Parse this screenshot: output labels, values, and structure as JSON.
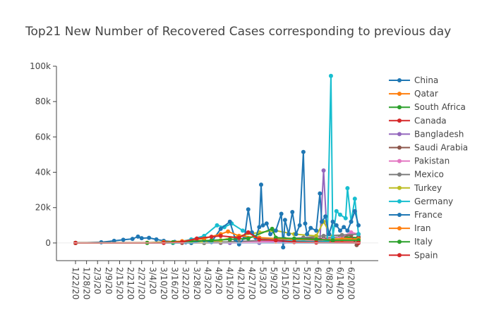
{
  "chart_data": {
    "type": "line",
    "title": "Top21 New Number of Recovered Cases corresponding to previous day",
    "xlabel": "",
    "ylabel": "",
    "x_ticks": [
      "1/22/20",
      "1/28/20",
      "2/3/20",
      "2/9/20",
      "2/15/20",
      "2/21/20",
      "2/27/20",
      "3/4/20",
      "3/10/20",
      "3/16/20",
      "3/22/20",
      "3/28/20",
      "4/3/20",
      "4/9/20",
      "4/15/20",
      "4/21/20",
      "4/27/20",
      "5/3/20",
      "5/9/20",
      "5/15/20",
      "5/21/20",
      "5/27/20",
      "6/2/20",
      "6/8/20",
      "6/14/20",
      "6/20/20"
    ],
    "x_start": "1/22/20",
    "x_end": "6/24/20",
    "y_ticks": [
      0,
      20000,
      40000,
      60000,
      80000,
      100000
    ],
    "y_tick_labels": [
      "0",
      "20k",
      "40k",
      "60k",
      "80k",
      "100k"
    ],
    "ylim": [
      -10000,
      100000
    ],
    "grid": false,
    "legend_position": "right",
    "series": [
      {
        "name": "China",
        "color": "#1f77b4",
        "points": [
          [
            "1/22/20",
            0
          ],
          [
            "2/5/20",
            400
          ],
          [
            "2/12/20",
            1200
          ],
          [
            "2/17/20",
            1800
          ],
          [
            "2/22/20",
            2300
          ],
          [
            "2/25/20",
            3600
          ],
          [
            "2/27/20",
            2700
          ],
          [
            "3/2/20",
            2900
          ],
          [
            "3/6/20",
            2000
          ],
          [
            "3/10/20",
            1200
          ],
          [
            "3/16/20",
            600
          ],
          [
            "3/22/20",
            400
          ],
          [
            "4/1/20",
            200
          ],
          [
            "4/10/20",
            100
          ],
          [
            "5/1/20",
            50
          ],
          [
            "6/24/20",
            0
          ]
        ]
      },
      {
        "name": "Qatar",
        "color": "#ff7f0e",
        "points": [
          [
            "1/22/20",
            0
          ],
          [
            "4/1/20",
            0
          ],
          [
            "4/20/20",
            300
          ],
          [
            "5/10/20",
            700
          ],
          [
            "5/25/20",
            1200
          ],
          [
            "6/5/20",
            2000
          ],
          [
            "6/14/20",
            2800
          ],
          [
            "6/24/20",
            2300
          ]
        ]
      },
      {
        "name": "South Africa",
        "color": "#2ca02c",
        "points": [
          [
            "1/22/20",
            0
          ],
          [
            "4/1/20",
            0
          ],
          [
            "4/20/20",
            300
          ],
          [
            "5/1/20",
            800
          ],
          [
            "5/10/20",
            1000
          ],
          [
            "5/25/20",
            1500
          ],
          [
            "6/5/20",
            2500
          ],
          [
            "6/14/20",
            3500
          ],
          [
            "6/24/20",
            3000
          ]
        ]
      },
      {
        "name": "Canada",
        "color": "#d62728",
        "points": [
          [
            "1/22/20",
            0
          ],
          [
            "3/15/20",
            0
          ],
          [
            "4/1/20",
            300
          ],
          [
            "4/15/20",
            600
          ],
          [
            "5/1/20",
            900
          ],
          [
            "5/15/20",
            1000
          ],
          [
            "6/1/20",
            700
          ],
          [
            "6/24/20",
            500
          ]
        ]
      },
      {
        "name": "Bangladesh",
        "color": "#9467bd",
        "points": [
          [
            "1/22/20",
            0
          ],
          [
            "4/15/20",
            0
          ],
          [
            "5/1/20",
            200
          ],
          [
            "5/15/20",
            600
          ],
          [
            "5/29/20",
            1000
          ],
          [
            "6/3/20",
            1200
          ],
          [
            "6/5/20",
            41000
          ],
          [
            "6/7/20",
            1500
          ],
          [
            "6/15/20",
            2000
          ],
          [
            "6/24/20",
            1800
          ]
        ]
      },
      {
        "name": "Saudi Arabia",
        "color": "#8c564b",
        "points": [
          [
            "1/22/20",
            0
          ],
          [
            "3/20/20",
            0
          ],
          [
            "4/10/20",
            200
          ],
          [
            "5/1/20",
            1200
          ],
          [
            "5/15/20",
            2200
          ],
          [
            "5/25/20",
            2800
          ],
          [
            "6/5/20",
            2500
          ],
          [
            "6/15/20",
            3500
          ],
          [
            "6/20/20",
            4500
          ],
          [
            "6/23/20",
            -1200
          ],
          [
            "6/24/20",
            3500
          ]
        ]
      },
      {
        "name": "Pakistan",
        "color": "#e377c2",
        "points": [
          [
            "1/22/20",
            0
          ],
          [
            "4/1/20",
            100
          ],
          [
            "4/20/20",
            400
          ],
          [
            "5/10/20",
            1000
          ],
          [
            "5/25/20",
            1500
          ],
          [
            "6/5/20",
            1800
          ],
          [
            "6/15/20",
            3500
          ],
          [
            "6/20/20",
            6000
          ],
          [
            "6/24/20",
            5000
          ]
        ]
      },
      {
        "name": "Mexico",
        "color": "#7f7f7f",
        "points": [
          [
            "1/22/20",
            0
          ],
          [
            "4/1/20",
            100
          ],
          [
            "4/20/20",
            800
          ],
          [
            "5/10/20",
            2000
          ],
          [
            "5/25/20",
            3000
          ],
          [
            "6/5/20",
            4000
          ],
          [
            "6/15/20",
            4500
          ],
          [
            "6/24/20",
            5000
          ]
        ]
      },
      {
        "name": "Turkey",
        "color": "#bcbd22",
        "points": [
          [
            "1/22/20",
            0
          ],
          [
            "3/25/20",
            0
          ],
          [
            "4/10/20",
            1500
          ],
          [
            "4/20/20",
            4000
          ],
          [
            "5/1/20",
            6000
          ],
          [
            "5/10/20",
            7000
          ],
          [
            "5/20/20",
            5000
          ],
          [
            "6/1/20",
            4000
          ],
          [
            "6/5/20",
            12000
          ],
          [
            "6/10/20",
            2500
          ],
          [
            "6/24/20",
            1800
          ]
        ]
      },
      {
        "name": "Germany",
        "color": "#17becf",
        "points": [
          [
            "1/22/20",
            0
          ],
          [
            "3/15/20",
            0
          ],
          [
            "3/25/20",
            2000
          ],
          [
            "4/1/20",
            4000
          ],
          [
            "4/8/20",
            10000
          ],
          [
            "4/12/20",
            9000
          ],
          [
            "4/16/20",
            11000
          ],
          [
            "4/22/20",
            7000
          ],
          [
            "5/1/20",
            3000
          ],
          [
            "5/10/20",
            1500
          ],
          [
            "5/25/20",
            1000
          ],
          [
            "6/1/20",
            500
          ],
          [
            "6/7/20",
            1000
          ],
          [
            "6/9/20",
            94500
          ],
          [
            "6/10/20",
            3000
          ],
          [
            "6/12/20",
            18000
          ],
          [
            "6/14/20",
            16000
          ],
          [
            "6/17/20",
            14000
          ],
          [
            "6/18/20",
            31000
          ],
          [
            "6/20/20",
            12000
          ],
          [
            "6/22/20",
            25000
          ],
          [
            "6/24/20",
            5000
          ]
        ]
      },
      {
        "name": "France",
        "color": "#1f77b4",
        "points": [
          [
            "1/22/20",
            0
          ],
          [
            "3/25/20",
            0
          ],
          [
            "4/1/20",
            1500
          ],
          [
            "4/5/20",
            500
          ],
          [
            "4/10/20",
            8000
          ],
          [
            "4/15/20",
            12000
          ],
          [
            "4/18/20",
            2000
          ],
          [
            "4/20/20",
            -800
          ],
          [
            "4/23/20",
            3000
          ],
          [
            "4/25/20",
            19000
          ],
          [
            "4/27/20",
            6000
          ],
          [
            "4/29/20",
            3000
          ],
          [
            "5/1/20",
            9000
          ],
          [
            "5/2/20",
            33000
          ],
          [
            "5/3/20",
            10000
          ],
          [
            "5/5/20",
            11000
          ],
          [
            "5/7/20",
            5000
          ],
          [
            "5/10/20",
            7000
          ],
          [
            "5/13/20",
            16500
          ],
          [
            "5/14/20",
            -2500
          ],
          [
            "5/15/20",
            13000
          ],
          [
            "5/17/20",
            5000
          ],
          [
            "5/19/20",
            17500
          ],
          [
            "5/21/20",
            5000
          ],
          [
            "5/23/20",
            10000
          ],
          [
            "5/25/20",
            51500
          ],
          [
            "5/26/20",
            11000
          ],
          [
            "5/27/20",
            5000
          ],
          [
            "5/29/20",
            8500
          ],
          [
            "6/1/20",
            7000
          ],
          [
            "6/3/20",
            28000
          ],
          [
            "6/4/20",
            12000
          ],
          [
            "6/6/20",
            15000
          ],
          [
            "6/8/20",
            5000
          ],
          [
            "6/10/20",
            12000
          ],
          [
            "6/12/20",
            10000
          ],
          [
            "6/14/20",
            7000
          ],
          [
            "6/16/20",
            9000
          ],
          [
            "6/18/20",
            7000
          ],
          [
            "6/20/20",
            12000
          ],
          [
            "6/22/20",
            18000
          ],
          [
            "6/24/20",
            10000
          ]
        ]
      },
      {
        "name": "Iran",
        "color": "#ff7f0e",
        "points": [
          [
            "1/22/20",
            0
          ],
          [
            "3/1/20",
            100
          ],
          [
            "3/10/20",
            500
          ],
          [
            "3/20/20",
            1000
          ],
          [
            "4/1/20",
            2500
          ],
          [
            "4/10/20",
            5000
          ],
          [
            "4/14/20",
            6500
          ],
          [
            "4/20/20",
            4000
          ],
          [
            "5/1/20",
            3000
          ],
          [
            "5/10/20",
            2500
          ],
          [
            "5/20/20",
            2000
          ],
          [
            "6/1/20",
            1800
          ],
          [
            "6/15/20",
            2000
          ],
          [
            "6/24/20",
            2200
          ]
        ]
      },
      {
        "name": "Italy",
        "color": "#2ca02c",
        "points": [
          [
            "1/22/20",
            0
          ],
          [
            "3/1/20",
            0
          ],
          [
            "3/15/20",
            400
          ],
          [
            "3/25/20",
            1000
          ],
          [
            "4/5/20",
            1500
          ],
          [
            "4/15/20",
            2000
          ],
          [
            "4/25/20",
            2500
          ],
          [
            "5/8/20",
            8000
          ],
          [
            "5/10/20",
            3000
          ],
          [
            "5/20/20",
            2500
          ],
          [
            "6/1/20",
            2000
          ],
          [
            "6/10/20",
            1500
          ],
          [
            "6/24/20",
            1500
          ]
        ]
      },
      {
        "name": "Spain",
        "color": "#d62728",
        "points": [
          [
            "1/22/20",
            0
          ],
          [
            "3/10/20",
            0
          ],
          [
            "3/20/20",
            500
          ],
          [
            "3/28/20",
            2500
          ],
          [
            "4/5/20",
            3500
          ],
          [
            "4/10/20",
            4000
          ],
          [
            "4/20/20",
            3000
          ],
          [
            "4/25/20",
            6000
          ],
          [
            "5/1/20",
            2000
          ],
          [
            "5/10/20",
            1500
          ],
          [
            "5/20/20",
            500
          ],
          [
            "6/1/20",
            200
          ],
          [
            "6/24/20",
            0
          ]
        ]
      }
    ]
  }
}
